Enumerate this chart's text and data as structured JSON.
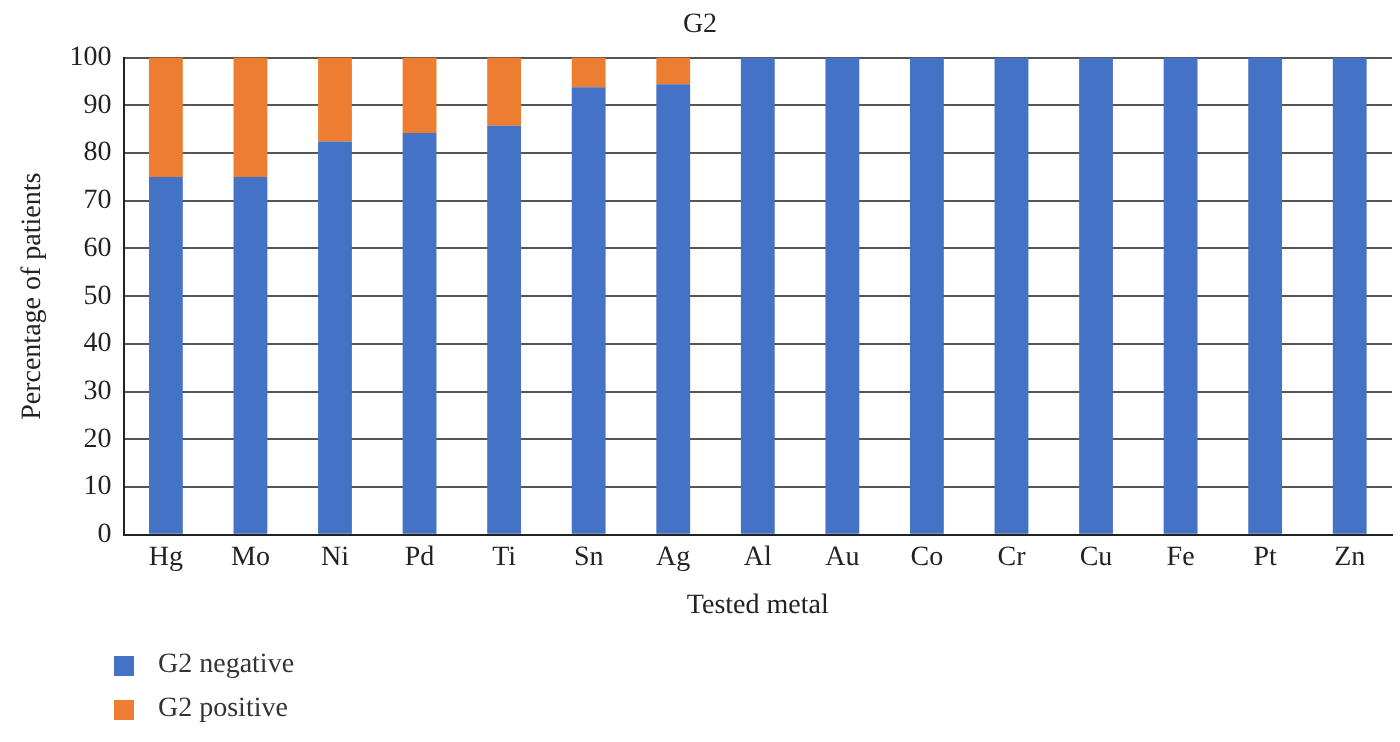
{
  "chart_data": {
    "type": "bar",
    "title": "G2",
    "xlabel": "Tested metal",
    "ylabel": "Percentage of patients",
    "categories": [
      "Hg",
      "Mo",
      "Ni",
      "Pd",
      "Ti",
      "Sn",
      "Ag",
      "Al",
      "Au",
      "Co",
      "Cr",
      "Cu",
      "Fe",
      "Pt",
      "Zn"
    ],
    "stacked": true,
    "series": [
      {
        "name": "G2 negative",
        "color": "#4472c4",
        "values": [
          75,
          75,
          82.4,
          84.2,
          85.7,
          93.8,
          94.4,
          100,
          100,
          100,
          100,
          100,
          100,
          100,
          100
        ]
      },
      {
        "name": "G2 positive",
        "color": "#ed7d31",
        "values": [
          25,
          25,
          17.6,
          15.8,
          14.3,
          6.2,
          5.6,
          0,
          0,
          0,
          0,
          0,
          0,
          0,
          0
        ]
      }
    ],
    "ylim": [
      0,
      100
    ],
    "yticks": [
      0,
      10,
      20,
      30,
      40,
      50,
      60,
      70,
      80,
      90,
      100
    ],
    "grid": "y",
    "legend": "bottom left"
  }
}
